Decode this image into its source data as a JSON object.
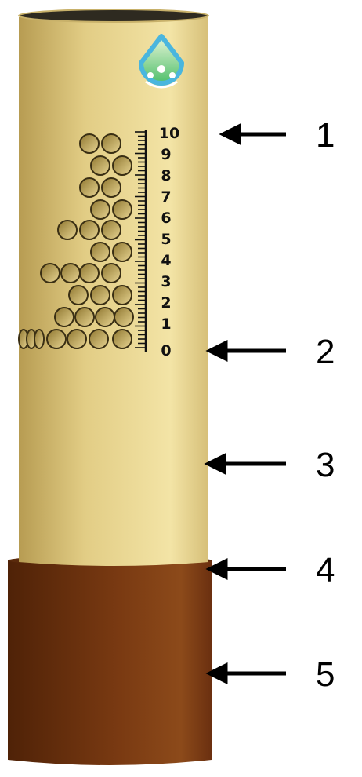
{
  "colors": {
    "tube_light": "#f3e4a6",
    "tube_mid": "#e2cd85",
    "tube_dark": "#b79c52",
    "base_dark": "#4f2207",
    "base_mid": "#7a3a12",
    "base_light": "#8c4a1a",
    "hole_fill": "#c9aa52",
    "logo_blue": "#4ab6de",
    "logo_green": "#4fbf6b"
  },
  "icons": {
    "logo": "water-drop-people-logo",
    "arrow": "left-arrow-icon"
  },
  "scale": {
    "labels": [
      "10",
      "9",
      "8",
      "7",
      "6",
      "5",
      "4",
      "3",
      "2",
      "1",
      "0"
    ]
  },
  "callouts": [
    {
      "number": "1"
    },
    {
      "number": "2"
    },
    {
      "number": "3"
    },
    {
      "number": "4"
    },
    {
      "number": "5"
    }
  ]
}
